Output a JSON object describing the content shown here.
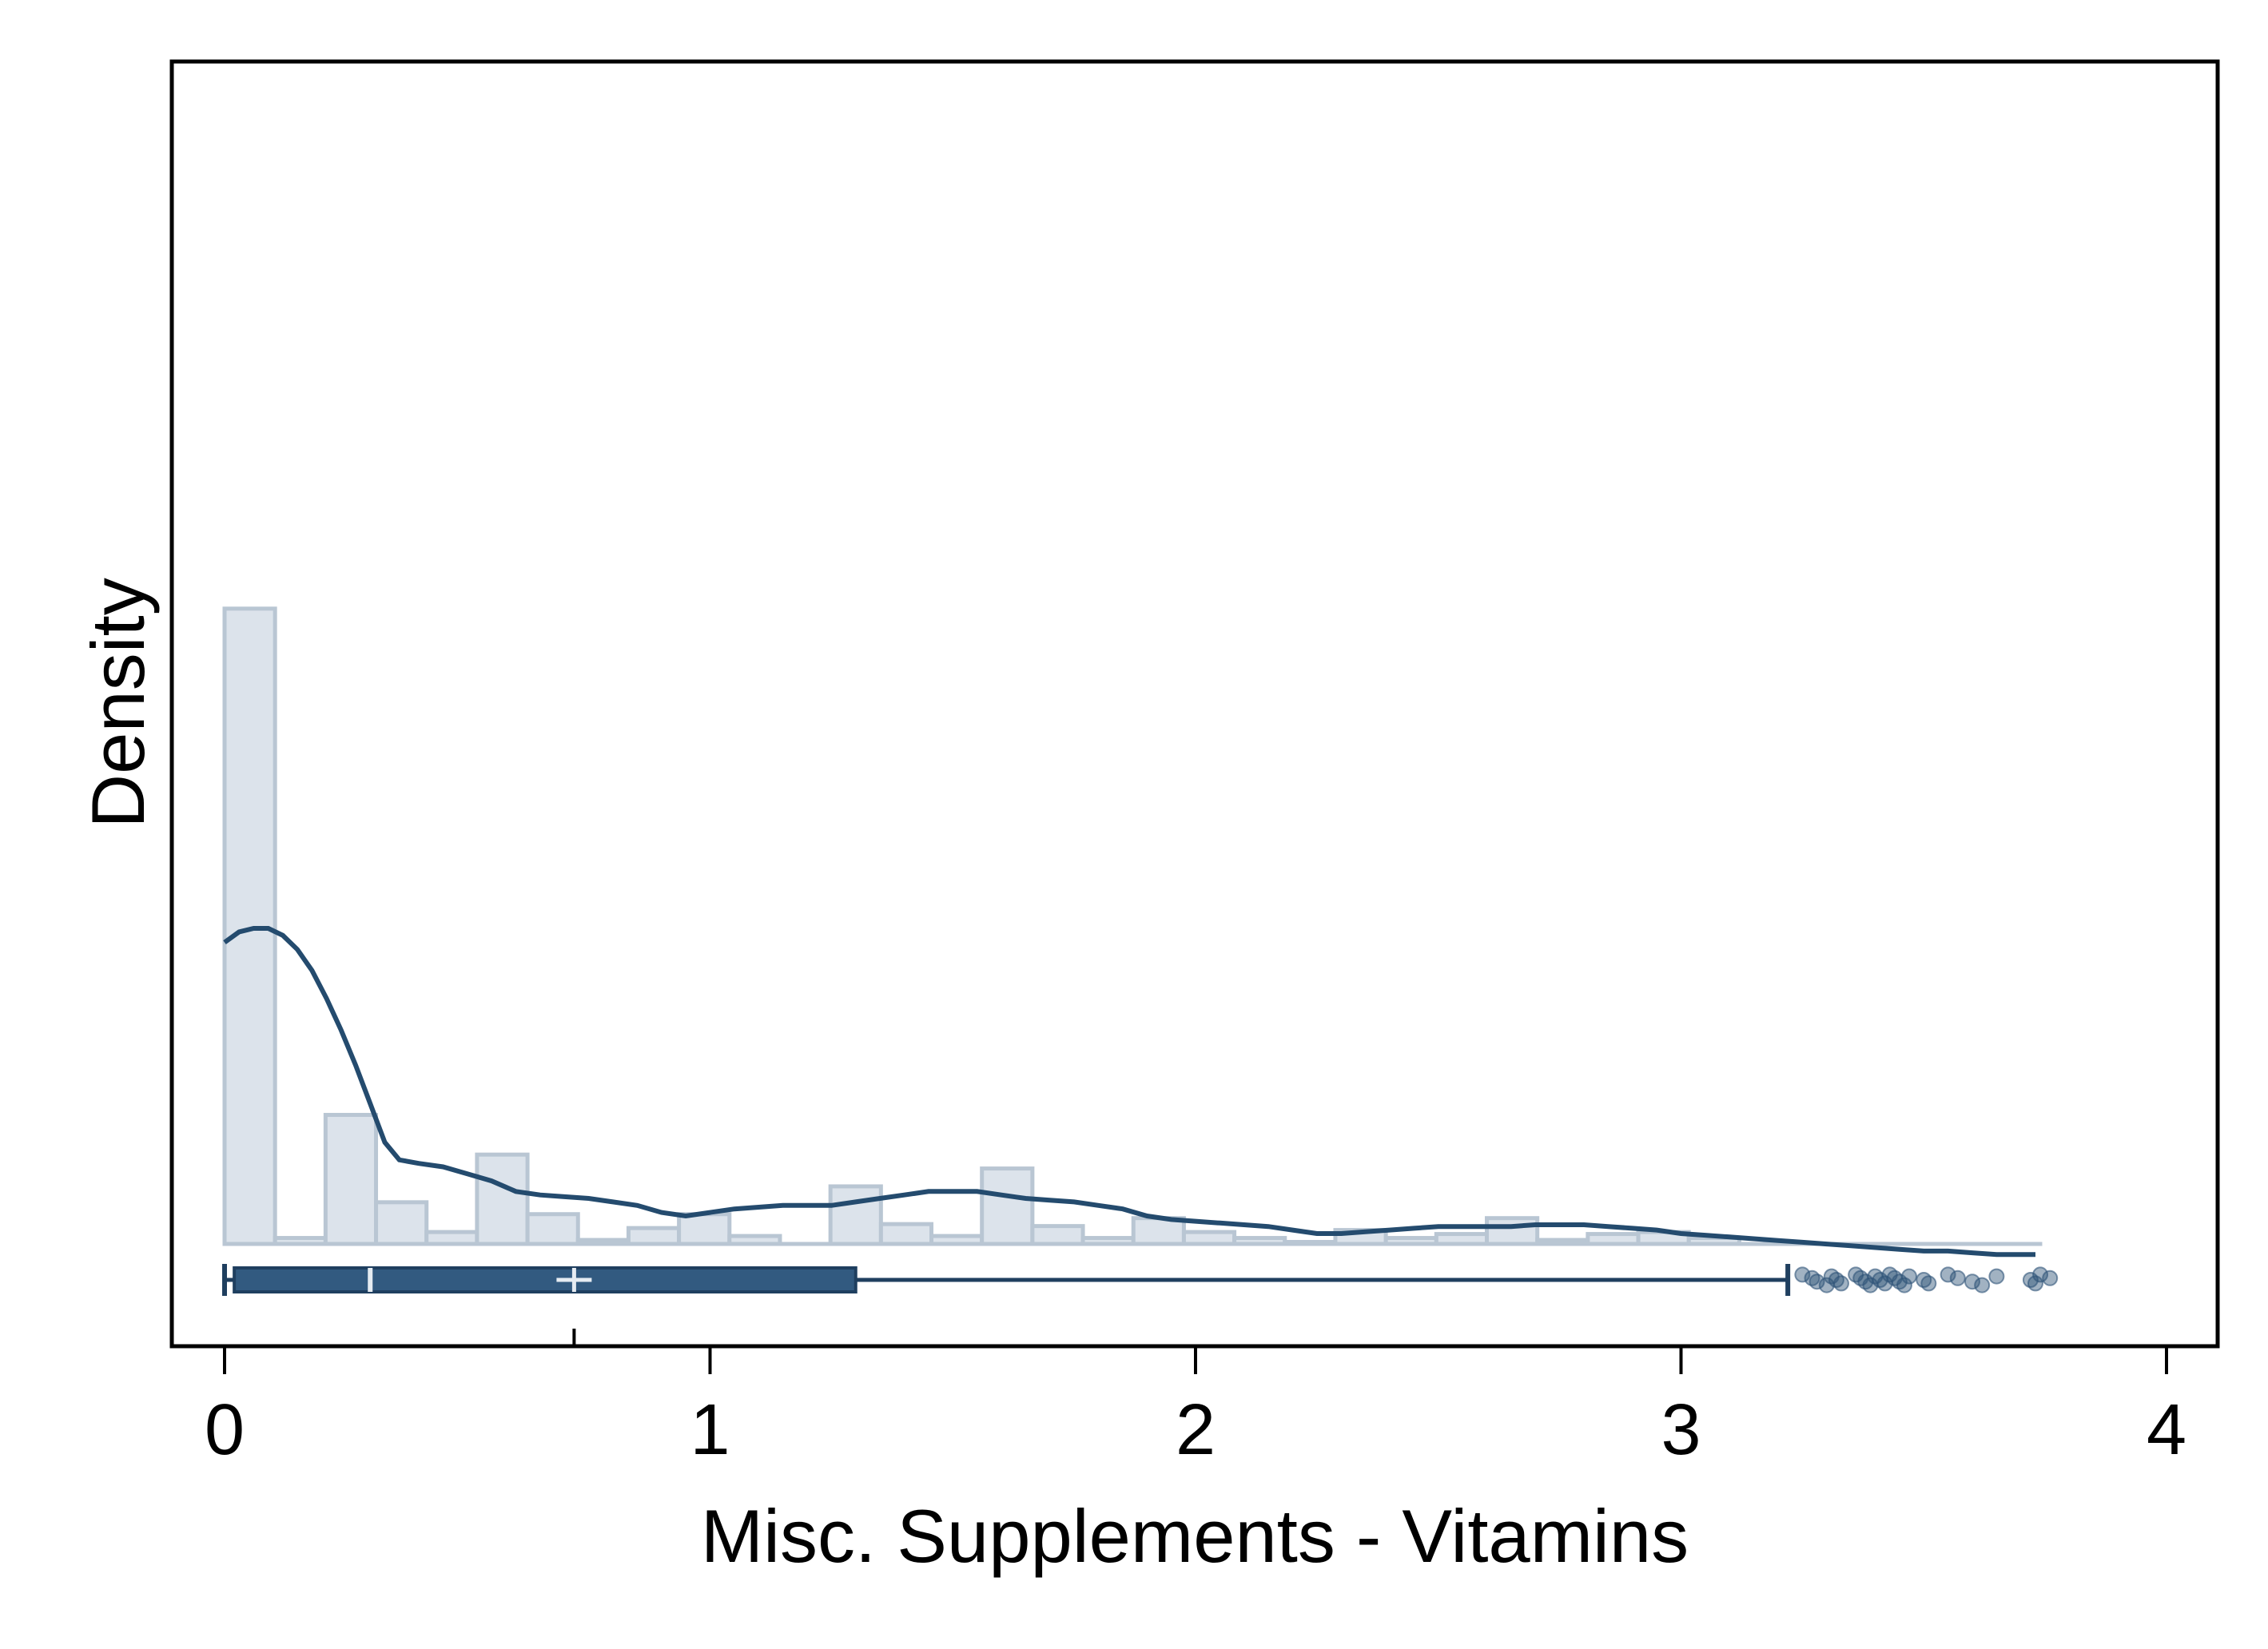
{
  "chart_data": {
    "type": "histogram",
    "title": "",
    "xlabel": "Misc. Supplements - Vitamins",
    "ylabel": "Density",
    "xlim": [
      -0.11,
      4.11
    ],
    "ylim": [
      0,
      3.3
    ],
    "x_ticks": [
      0,
      1,
      2,
      3,
      4
    ],
    "x_tick_labels": [
      "0",
      "1",
      "2",
      "3",
      "4"
    ],
    "y_ticks_shown": false,
    "grid": false,
    "legend": "none",
    "colors": {
      "bar_fill": "#dce3eb",
      "bar_stroke": "#b9c6d3",
      "density_line": "#244b6e",
      "box_fill": "#325a80",
      "box_stroke": "#1f3f5f",
      "outlier_fill": "#2e5478"
    },
    "histogram": {
      "bin_width": 0.104,
      "bin_starts": [
        0.0,
        0.104,
        0.208,
        0.312,
        0.416,
        0.52,
        0.624,
        0.728,
        0.832,
        0.936,
        1.04,
        1.144,
        1.248,
        1.352,
        1.456,
        1.56,
        1.664,
        1.768,
        1.872,
        1.976,
        2.08,
        2.184,
        2.288,
        2.392,
        2.496,
        2.6,
        2.704,
        2.808,
        2.912,
        3.016,
        3.12,
        3.224,
        3.328,
        3.432,
        3.536,
        3.64
      ],
      "densities": [
        3.2,
        0.03,
        0.65,
        0.21,
        0.06,
        0.45,
        0.15,
        0.02,
        0.08,
        0.15,
        0.04,
        0.0,
        0.29,
        0.1,
        0.04,
        0.38,
        0.09,
        0.03,
        0.13,
        0.06,
        0.03,
        0.01,
        0.07,
        0.03,
        0.05,
        0.13,
        0.02,
        0.05,
        0.06,
        0.03,
        0.0,
        0.0,
        0.0,
        0.0,
        0.0,
        0.0
      ]
    },
    "density_curve": {
      "x": [
        0.0,
        0.03,
        0.06,
        0.09,
        0.12,
        0.15,
        0.18,
        0.21,
        0.24,
        0.27,
        0.3,
        0.33,
        0.36,
        0.4,
        0.45,
        0.5,
        0.55,
        0.6,
        0.65,
        0.7,
        0.75,
        0.8,
        0.85,
        0.9,
        0.95,
        1.0,
        1.05,
        1.1,
        1.15,
        1.2,
        1.25,
        1.3,
        1.35,
        1.4,
        1.45,
        1.5,
        1.55,
        1.6,
        1.65,
        1.7,
        1.75,
        1.8,
        1.85,
        1.9,
        1.95,
        2.0,
        2.05,
        2.1,
        2.15,
        2.2,
        2.25,
        2.3,
        2.35,
        2.4,
        2.45,
        2.5,
        2.55,
        2.6,
        2.65,
        2.7,
        2.75,
        2.8,
        2.85,
        2.9,
        2.95,
        3.0,
        3.05,
        3.1,
        3.15,
        3.2,
        3.25,
        3.3,
        3.35,
        3.4,
        3.45,
        3.5,
        3.55,
        3.6,
        3.65,
        3.7,
        3.73
      ],
      "y": [
        0.78,
        0.81,
        0.82,
        0.82,
        0.8,
        0.76,
        0.7,
        0.62,
        0.53,
        0.43,
        0.32,
        0.21,
        0.16,
        0.15,
        0.14,
        0.12,
        0.1,
        0.07,
        0.06,
        0.055,
        0.05,
        0.04,
        0.03,
        0.01,
        0.0,
        0.01,
        0.02,
        0.025,
        0.03,
        0.03,
        0.03,
        0.04,
        0.05,
        0.06,
        0.07,
        0.07,
        0.07,
        0.06,
        0.05,
        0.045,
        0.04,
        0.03,
        0.02,
        0.0,
        -0.01,
        -0.015,
        -0.02,
        -0.025,
        -0.03,
        -0.04,
        -0.05,
        -0.05,
        -0.045,
        -0.04,
        -0.035,
        -0.03,
        -0.03,
        -0.03,
        -0.03,
        -0.025,
        -0.025,
        -0.025,
        -0.03,
        -0.035,
        -0.04,
        -0.05,
        -0.055,
        -0.06,
        -0.065,
        -0.07,
        -0.075,
        -0.08,
        -0.085,
        -0.09,
        -0.095,
        -0.1,
        -0.1,
        -0.105,
        -0.11,
        -0.11,
        -0.11
      ]
    },
    "box_plot": {
      "min": 0.0,
      "q1": 0.02,
      "median": 0.3,
      "mean": 0.72,
      "q3": 1.3,
      "upper_whisker": 3.22,
      "outliers": [
        3.25,
        3.27,
        3.28,
        3.3,
        3.31,
        3.32,
        3.33,
        3.36,
        3.37,
        3.38,
        3.39,
        3.4,
        3.41,
        3.42,
        3.43,
        3.44,
        3.45,
        3.46,
        3.47,
        3.5,
        3.51,
        3.55,
        3.57,
        3.6,
        3.62,
        3.65,
        3.72,
        3.73,
        3.74,
        3.76
      ]
    }
  }
}
